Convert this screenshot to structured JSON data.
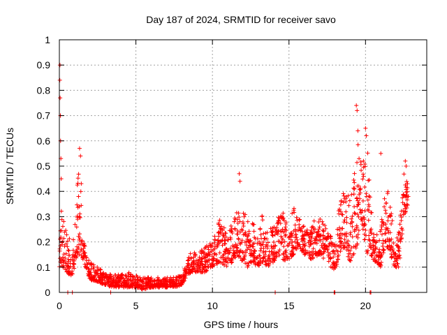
{
  "chart_data": {
    "type": "scatter",
    "title": "Day 187 of 2024, SRMTID for receiver savo",
    "xlabel": "GPS time / hours",
    "ylabel": "SRMTID / TECUs",
    "xlim": [
      0,
      24
    ],
    "ylim": [
      0,
      1
    ],
    "xticks": [
      0,
      5,
      10,
      15,
      20
    ],
    "yticks": [
      0,
      0.1,
      0.2,
      0.3,
      0.4,
      0.5,
      0.6,
      0.7,
      0.8,
      0.9,
      1
    ],
    "xtick_labels": [
      "0",
      "5",
      "10",
      "15",
      "20"
    ],
    "ytick_labels": [
      "0",
      "0.1",
      "0.2",
      "0.3",
      "0.4",
      "0.5",
      "0.6",
      "0.7",
      "0.8",
      "0.9",
      "1"
    ],
    "grid": true,
    "marker": "+",
    "marker_color": "#ff0000",
    "series": [
      {
        "name": "SRMTID",
        "envelope": {
          "x": [
            0.0,
            0.1,
            0.2,
            0.5,
            0.8,
            1.0,
            1.2,
            1.4,
            1.6,
            1.8,
            2.0,
            2.5,
            3.0,
            3.5,
            4.0,
            4.5,
            5.0,
            5.5,
            6.0,
            6.5,
            7.0,
            7.5,
            8.0,
            8.3,
            8.6,
            9.0,
            9.5,
            10.0,
            10.5,
            11.0,
            11.3,
            11.6,
            12.0,
            12.3,
            12.6,
            13.0,
            13.3,
            13.6,
            14.0,
            14.3,
            14.6,
            15.0,
            15.3,
            15.6,
            16.0,
            16.5,
            17.0,
            17.5,
            18.0,
            18.3,
            18.6,
            19.0,
            19.3,
            19.5,
            19.8,
            20.1,
            20.3,
            20.6,
            21.0,
            21.3,
            21.6,
            21.9,
            22.2,
            22.5,
            22.8
          ],
          "low": [
            0.1,
            0.12,
            0.1,
            0.08,
            0.06,
            0.1,
            0.15,
            0.15,
            0.12,
            0.08,
            0.05,
            0.04,
            0.03,
            0.02,
            0.02,
            0.02,
            0.02,
            0.01,
            0.02,
            0.02,
            0.02,
            0.02,
            0.03,
            0.06,
            0.08,
            0.08,
            0.08,
            0.1,
            0.12,
            0.1,
            0.12,
            0.15,
            0.12,
            0.1,
            0.12,
            0.1,
            0.12,
            0.1,
            0.12,
            0.15,
            0.13,
            0.12,
            0.15,
            0.18,
            0.15,
            0.13,
            0.15,
            0.12,
            0.08,
            0.15,
            0.18,
            0.12,
            0.15,
            0.2,
            0.25,
            0.15,
            0.15,
            0.12,
            0.1,
            0.2,
            0.15,
            0.1,
            0.1,
            0.3,
            0.35
          ],
          "high": [
            0.25,
            0.35,
            0.3,
            0.25,
            0.2,
            0.25,
            0.45,
            0.55,
            0.2,
            0.15,
            0.12,
            0.1,
            0.08,
            0.07,
            0.07,
            0.08,
            0.07,
            0.06,
            0.06,
            0.06,
            0.06,
            0.06,
            0.07,
            0.12,
            0.16,
            0.16,
            0.18,
            0.2,
            0.3,
            0.25,
            0.28,
            0.35,
            0.32,
            0.3,
            0.28,
            0.25,
            0.32,
            0.25,
            0.26,
            0.3,
            0.32,
            0.26,
            0.34,
            0.3,
            0.26,
            0.28,
            0.3,
            0.25,
            0.2,
            0.35,
            0.4,
            0.38,
            0.5,
            0.62,
            0.52,
            0.6,
            0.4,
            0.22,
            0.25,
            0.45,
            0.38,
            0.2,
            0.25,
            0.5,
            0.42
          ]
        },
        "notable_points": [
          {
            "x": 0.04,
            "y": 0.9
          },
          {
            "x": 0.03,
            "y": 0.84
          },
          {
            "x": 0.05,
            "y": 0.77
          },
          {
            "x": 0.07,
            "y": 0.7
          },
          {
            "x": 0.08,
            "y": 0.6
          },
          {
            "x": 0.1,
            "y": 0.53
          },
          {
            "x": 0.12,
            "y": 0.45
          },
          {
            "x": 1.32,
            "y": 0.57
          },
          {
            "x": 1.38,
            "y": 0.54
          },
          {
            "x": 11.75,
            "y": 0.47
          },
          {
            "x": 11.8,
            "y": 0.44
          },
          {
            "x": 19.4,
            "y": 0.74
          },
          {
            "x": 19.45,
            "y": 0.72
          },
          {
            "x": 19.5,
            "y": 0.64
          },
          {
            "x": 20.0,
            "y": 0.65
          },
          {
            "x": 20.05,
            "y": 0.62
          },
          {
            "x": 21.0,
            "y": 0.55
          },
          {
            "x": 22.6,
            "y": 0.52
          },
          {
            "x": 22.65,
            "y": 0.5
          }
        ],
        "zero_points_x": [
          0.55,
          0.85,
          3.35,
          14.1,
          17.95,
          18.0,
          20.3,
          20.35
        ]
      }
    ]
  }
}
